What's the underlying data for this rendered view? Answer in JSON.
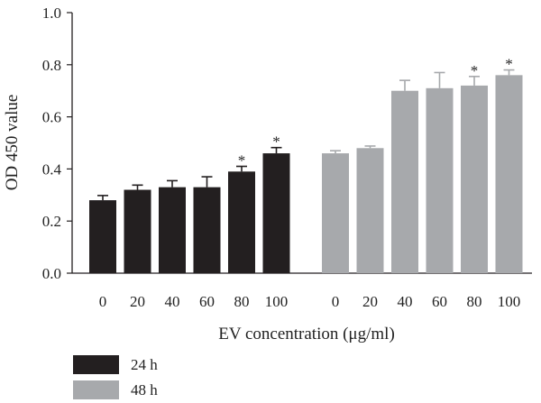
{
  "chart_data": {
    "type": "bar",
    "title": "",
    "ylabel": "OD 450 value",
    "xlabel": "EV concentration (μg/ml)",
    "ylim": [
      0,
      1.0
    ],
    "yticks": [
      "0.0",
      "0.2",
      "0.4",
      "0.6",
      "0.8",
      "1.0"
    ],
    "categories": [
      "0",
      "20",
      "40",
      "60",
      "80",
      "100"
    ],
    "legend_placement": "bottom-left",
    "series": [
      {
        "name": "24 h",
        "color": "#231f20",
        "values": [
          0.28,
          0.32,
          0.33,
          0.33,
          0.39,
          0.46
        ],
        "errors": [
          0.018,
          0.018,
          0.025,
          0.04,
          0.02,
          0.022
        ],
        "significance": [
          "",
          "",
          "",
          "",
          "*",
          "*"
        ]
      },
      {
        "name": "48 h",
        "color": "#a7a9ac",
        "values": [
          0.46,
          0.48,
          0.7,
          0.71,
          0.72,
          0.76
        ],
        "errors": [
          0.01,
          0.008,
          0.04,
          0.06,
          0.035,
          0.02
        ],
        "significance": [
          "",
          "",
          "",
          "",
          "*",
          "*"
        ]
      }
    ]
  }
}
